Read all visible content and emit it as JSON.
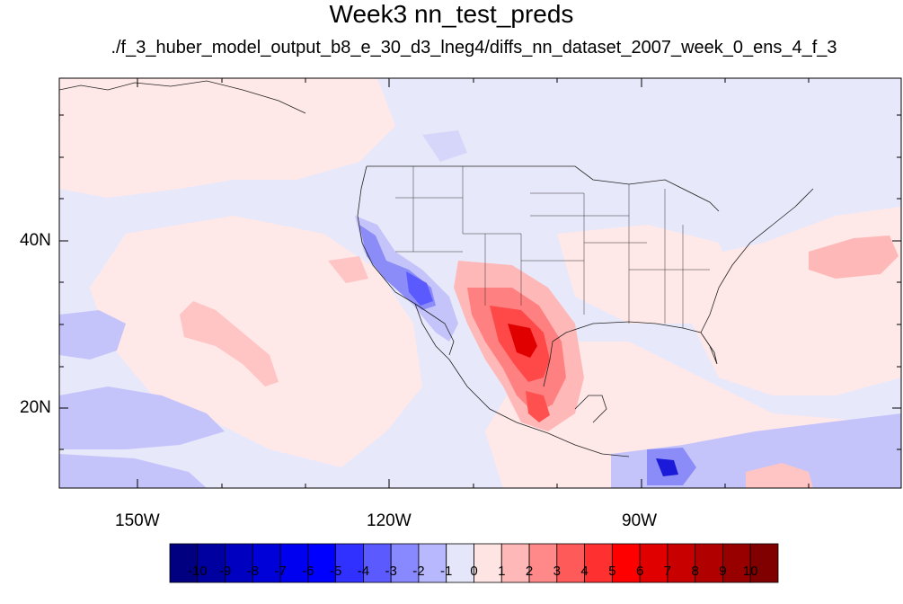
{
  "title": "Week3 nn_test_preds",
  "subtitle": "./f_3_huber_model_output_b8_e_30_d3_lneg4/diffs_nn_dataset_2007_week_0_ens_4_f_3",
  "lat_labels": [
    "40N",
    "20N"
  ],
  "lon_labels": [
    "150W",
    "120W",
    "90W"
  ],
  "colorbar": {
    "labels": [
      "-10",
      "-9",
      "-8",
      "-7",
      "-6",
      "-5",
      "-4",
      "-3",
      "-2",
      "-1",
      "0",
      "1",
      "2",
      "3",
      "4",
      "5",
      "6",
      "7",
      "8",
      "9",
      "10"
    ],
    "colors": [
      "#000080",
      "#0000a0",
      "#0000c0",
      "#0000d8",
      "#0000f0",
      "#0000ff",
      "#3030ff",
      "#5a5aff",
      "#8888ff",
      "#b8b8ff",
      "#e6e6fa",
      "#ffe4e4",
      "#ffb8b8",
      "#ff8888",
      "#ff5a5a",
      "#ff3030",
      "#ff0000",
      "#e00000",
      "#c80000",
      "#b00000",
      "#980000",
      "#800000"
    ]
  },
  "map_extent": {
    "lon_min": -160,
    "lon_max": -60,
    "lat_min": 10,
    "lat_max": 59
  },
  "field_colors": {
    "background": "#e8e8fb",
    "light_pink": "#ffe8e8",
    "pink": "#ffbcbc",
    "mid_red": "#ff8080",
    "red": "#ff4848",
    "deep_red": "#e00000",
    "light_blue": "#c4c4fb",
    "mid_blue": "#8c8cf8",
    "blue": "#5a5aff",
    "deep_blue": "#1010d0"
  }
}
